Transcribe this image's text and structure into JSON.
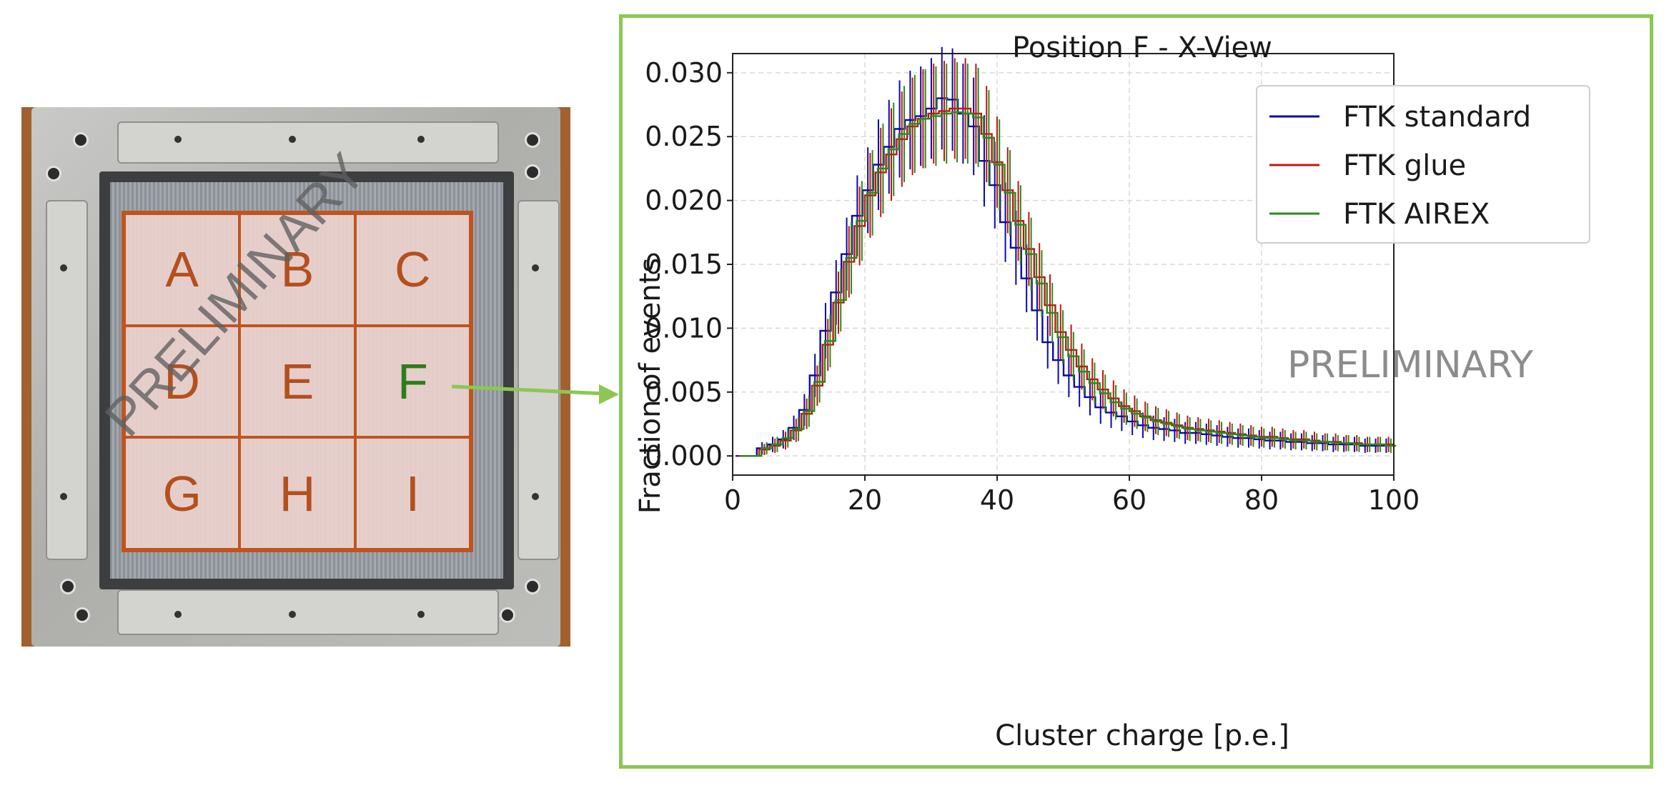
{
  "photo": {
    "cells": [
      "A",
      "B",
      "C",
      "D",
      "E",
      "F",
      "G",
      "H",
      "I"
    ],
    "highlighted_cell": "F",
    "watermark": "PRELIMINARY",
    "colors": {
      "grid_line": "#c0541f",
      "letters": "#b4501e",
      "highlight": "#2e7d1c"
    }
  },
  "connector": {
    "color": "#8cc754"
  },
  "chart_data": {
    "type": "line",
    "title": "Position F - X-View",
    "xlabel": "Cluster charge [p.e.]",
    "ylabel": "Fraction of events",
    "xlim": [
      0,
      100
    ],
    "ylim": [
      -0.0015,
      0.0315
    ],
    "xticks": [
      "0",
      "20",
      "40",
      "60",
      "80",
      "100"
    ],
    "yticks": [
      "0.000",
      "0.005",
      "0.010",
      "0.015",
      "0.020",
      "0.025",
      "0.030"
    ],
    "grid": true,
    "legend_position": "top-right",
    "watermark": "PRELIMINARY",
    "bin_width": 1.6,
    "x": [
      1.6,
      3.2,
      4.8,
      6.4,
      8.0,
      9.6,
      11.2,
      12.8,
      14.4,
      16.0,
      17.6,
      19.2,
      20.8,
      22.4,
      24.0,
      25.6,
      27.2,
      28.8,
      30.4,
      32.0,
      33.6,
      35.2,
      36.8,
      38.4,
      40.0,
      41.6,
      43.2,
      44.8,
      46.4,
      48.0,
      49.6,
      51.2,
      52.8,
      54.4,
      56.0,
      57.6,
      59.2,
      60.8,
      62.4,
      64.0,
      65.6,
      67.2,
      68.8,
      70.4,
      72.0,
      73.6,
      75.2,
      76.8,
      78.4,
      80.0,
      81.6,
      83.2,
      84.8,
      86.4,
      88.0,
      89.6,
      91.2,
      92.8,
      94.4,
      96.0,
      97.6,
      99.2
    ],
    "series": [
      {
        "name": "FTK standard",
        "color": "#0a0aa8",
        "values": [
          0.0,
          0.0,
          0.0006,
          0.0009,
          0.0013,
          0.0022,
          0.0036,
          0.0063,
          0.0098,
          0.0128,
          0.0158,
          0.0188,
          0.0208,
          0.0228,
          0.0242,
          0.0256,
          0.0263,
          0.0266,
          0.0272,
          0.028,
          0.0279,
          0.0268,
          0.0258,
          0.0231,
          0.0212,
          0.0183,
          0.0163,
          0.0139,
          0.0114,
          0.0089,
          0.0075,
          0.0063,
          0.0054,
          0.0046,
          0.0038,
          0.0034,
          0.0031,
          0.0027,
          0.0024,
          0.0022,
          0.0021,
          0.002,
          0.0018,
          0.0018,
          0.0017,
          0.0016,
          0.0015,
          0.0014,
          0.0014,
          0.0013,
          0.0012,
          0.0012,
          0.0011,
          0.0011,
          0.001,
          0.001,
          0.0009,
          0.0009,
          0.0009,
          0.0008,
          0.0008,
          0.0008
        ]
      },
      {
        "name": "FTK glue",
        "color": "#c41414",
        "values": [
          0.0,
          0.0,
          0.0005,
          0.0008,
          0.0012,
          0.002,
          0.0033,
          0.0055,
          0.0087,
          0.012,
          0.0152,
          0.018,
          0.0204,
          0.0222,
          0.0236,
          0.0248,
          0.0258,
          0.0264,
          0.0268,
          0.027,
          0.0272,
          0.0272,
          0.0268,
          0.0252,
          0.023,
          0.0208,
          0.0184,
          0.0162,
          0.014,
          0.0118,
          0.0097,
          0.0083,
          0.007,
          0.006,
          0.0052,
          0.0045,
          0.0039,
          0.0035,
          0.0031,
          0.0028,
          0.0026,
          0.0024,
          0.0022,
          0.0021,
          0.002,
          0.0019,
          0.0018,
          0.0017,
          0.0016,
          0.0015,
          0.0015,
          0.0014,
          0.0013,
          0.0013,
          0.0012,
          0.0011,
          0.0011,
          0.001,
          0.001,
          0.0009,
          0.0009,
          0.0009
        ]
      },
      {
        "name": "FTK AIREX",
        "color": "#2a8a1e",
        "values": [
          0.0,
          0.0,
          0.0006,
          0.0009,
          0.0014,
          0.0021,
          0.0035,
          0.0058,
          0.009,
          0.0122,
          0.0155,
          0.0184,
          0.0206,
          0.0225,
          0.024,
          0.0252,
          0.026,
          0.0264,
          0.0266,
          0.0268,
          0.0269,
          0.0268,
          0.0265,
          0.0249,
          0.0228,
          0.0206,
          0.0181,
          0.0158,
          0.0135,
          0.0112,
          0.0093,
          0.0078,
          0.0066,
          0.0057,
          0.0049,
          0.0042,
          0.0037,
          0.0033,
          0.003,
          0.0027,
          0.0025,
          0.0023,
          0.0021,
          0.002,
          0.0019,
          0.0018,
          0.0017,
          0.0016,
          0.0015,
          0.0014,
          0.0014,
          0.0013,
          0.0012,
          0.0012,
          0.0011,
          0.0011,
          0.001,
          0.001,
          0.0009,
          0.0009,
          0.0009,
          0.0008
        ]
      }
    ]
  }
}
